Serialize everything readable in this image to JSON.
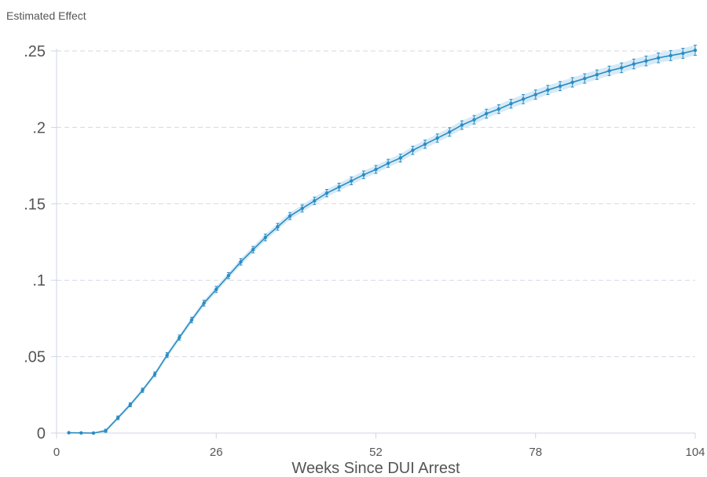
{
  "chart_data": {
    "type": "line",
    "title": "",
    "ylabel": "Estimated Effect",
    "xlabel": "Weeks Since DUI Arrest",
    "xlim": [
      0,
      104
    ],
    "ylim": [
      0,
      0.25
    ],
    "xticks": [
      0,
      26,
      52,
      78,
      104
    ],
    "xtick_labels": [
      "0",
      "26",
      "52",
      "78",
      "104"
    ],
    "yticks": [
      0,
      0.05,
      0.1,
      0.15,
      0.2,
      0.25
    ],
    "ytick_labels": [
      "0",
      ".05",
      ".1",
      ".15",
      ".2",
      ".25"
    ],
    "grid": "horizontal dashed",
    "confidence_band": true,
    "error_bars": true,
    "colors": {
      "line": "#2b8cc4",
      "band": "#cfe6f5",
      "grid": "#d4d9e6",
      "axis": "#cfd5e6",
      "text": "#555555"
    },
    "series": [
      {
        "x": [
          2,
          4,
          6,
          8,
          10,
          12,
          14,
          16,
          18,
          20,
          22,
          24,
          26,
          28,
          30,
          32,
          34,
          36,
          38,
          40,
          42,
          44,
          46,
          48,
          50,
          52,
          54,
          56,
          58,
          60,
          62,
          64,
          66,
          68,
          70,
          72,
          74,
          76,
          78,
          80,
          82,
          84,
          86,
          88,
          90,
          92,
          94,
          96,
          98,
          100,
          102,
          104
        ],
        "values": [
          0.0002,
          0.0001,
          0.0,
          0.0015,
          0.01,
          0.0185,
          0.028,
          0.0385,
          0.051,
          0.0625,
          0.074,
          0.085,
          0.094,
          0.103,
          0.112,
          0.12,
          0.128,
          0.135,
          0.142,
          0.147,
          0.152,
          0.157,
          0.161,
          0.165,
          0.169,
          0.1725,
          0.1765,
          0.18,
          0.185,
          0.189,
          0.193,
          0.197,
          0.2015,
          0.205,
          0.209,
          0.212,
          0.2155,
          0.2185,
          0.2215,
          0.2245,
          0.227,
          0.2295,
          0.232,
          0.2345,
          0.237,
          0.239,
          0.2415,
          0.2435,
          0.2455,
          0.247,
          0.2485,
          0.2505
        ],
        "ci_halfwidth": [
          0.0003,
          0.0003,
          0.0004,
          0.001,
          0.0012,
          0.0013,
          0.0014,
          0.0015,
          0.0016,
          0.0017,
          0.0018,
          0.0019,
          0.002,
          0.002,
          0.0021,
          0.0021,
          0.0022,
          0.0022,
          0.0023,
          0.0023,
          0.0024,
          0.0024,
          0.0025,
          0.0025,
          0.0025,
          0.0026,
          0.0026,
          0.0026,
          0.0027,
          0.0027,
          0.0027,
          0.0028,
          0.0028,
          0.0028,
          0.0029,
          0.0029,
          0.0029,
          0.003,
          0.003,
          0.003,
          0.003,
          0.0031,
          0.0031,
          0.0031,
          0.0031,
          0.0032,
          0.0032,
          0.0032,
          0.0032,
          0.0033,
          0.0033,
          0.0033
        ]
      }
    ]
  }
}
